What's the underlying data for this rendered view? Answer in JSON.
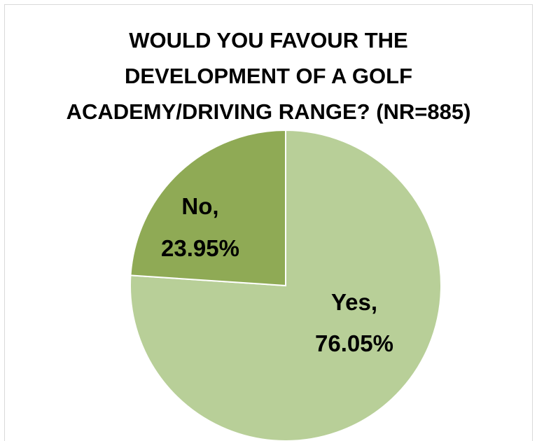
{
  "chart_data": {
    "type": "pie",
    "title_lines": [
      "WOULD YOU FAVOUR THE",
      "DEVELOPMENT  OF A GOLF",
      "ACADEMY/DRIVING RANGE? (NR=885)"
    ],
    "slices": [
      {
        "name": "No",
        "value": 23.95,
        "label_line1": "No,",
        "label_line2": "23.95%",
        "color": "#8faa55"
      },
      {
        "name": "Yes",
        "value": 76.05,
        "label_line1": "Yes,",
        "label_line2": "76.05%",
        "color": "#b8cf98"
      }
    ],
    "legend": "none",
    "edge_color": "#ffffff"
  }
}
